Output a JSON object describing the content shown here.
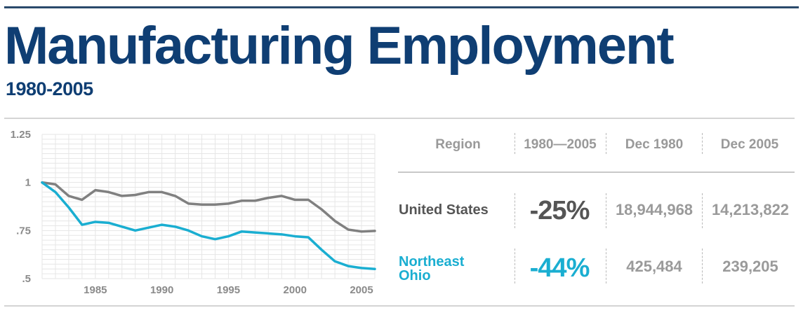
{
  "header": {
    "title": "Manufacturing Employment",
    "subtitle": "1980-2005"
  },
  "chart_data": {
    "type": "line",
    "x": [
      1981,
      1982,
      1983,
      1984,
      1985,
      1986,
      1987,
      1988,
      1989,
      1990,
      1991,
      1992,
      1993,
      1994,
      1995,
      1996,
      1997,
      1998,
      1999,
      2000,
      2001,
      2002,
      2003,
      2004,
      2005,
      2006
    ],
    "series": [
      {
        "name": "United States",
        "color": "#808080",
        "values": [
          1.0,
          0.99,
          0.93,
          0.91,
          0.96,
          0.95,
          0.93,
          0.935,
          0.95,
          0.95,
          0.93,
          0.89,
          0.885,
          0.885,
          0.89,
          0.905,
          0.905,
          0.92,
          0.93,
          0.91,
          0.91,
          0.86,
          0.8,
          0.755,
          0.745,
          0.748
        ]
      },
      {
        "name": "Northeast Ohio",
        "color": "#1aaed1",
        "values": [
          1.0,
          0.95,
          0.87,
          0.78,
          0.795,
          0.79,
          0.77,
          0.75,
          0.765,
          0.78,
          0.77,
          0.75,
          0.72,
          0.705,
          0.72,
          0.745,
          0.74,
          0.735,
          0.73,
          0.72,
          0.715,
          0.65,
          0.59,
          0.565,
          0.555,
          0.55
        ]
      }
    ],
    "ylim": [
      0.5,
      1.25
    ],
    "xlim": [
      1981,
      2006
    ],
    "y_ticks": [
      {
        "value": 1.25,
        "label": "1.25"
      },
      {
        "value": 1.0,
        "label": "1"
      },
      {
        "value": 0.75,
        "label": ".75"
      },
      {
        "value": 0.5,
        "label": ".5"
      }
    ],
    "x_ticks": [
      {
        "value": 1985,
        "label": "1985"
      },
      {
        "value": 1990,
        "label": "1990"
      },
      {
        "value": 1995,
        "label": "1995"
      },
      {
        "value": 2000,
        "label": "2000"
      },
      {
        "value": 2005,
        "label": "2005"
      }
    ],
    "grid": true
  },
  "table": {
    "headers": {
      "region": "Region",
      "change": "1980—2005",
      "start": "Dec 1980",
      "end": "Dec 2005"
    },
    "rows": [
      {
        "region_lines": [
          "United States"
        ],
        "change": "-25%",
        "start": "18,944,968",
        "end": "14,213,822",
        "color": "#555555"
      },
      {
        "region_lines": [
          "Northeast",
          "Ohio"
        ],
        "change": "-44%",
        "start": "425,484",
        "end": "239,205",
        "color": "#1aaed1"
      }
    ]
  }
}
